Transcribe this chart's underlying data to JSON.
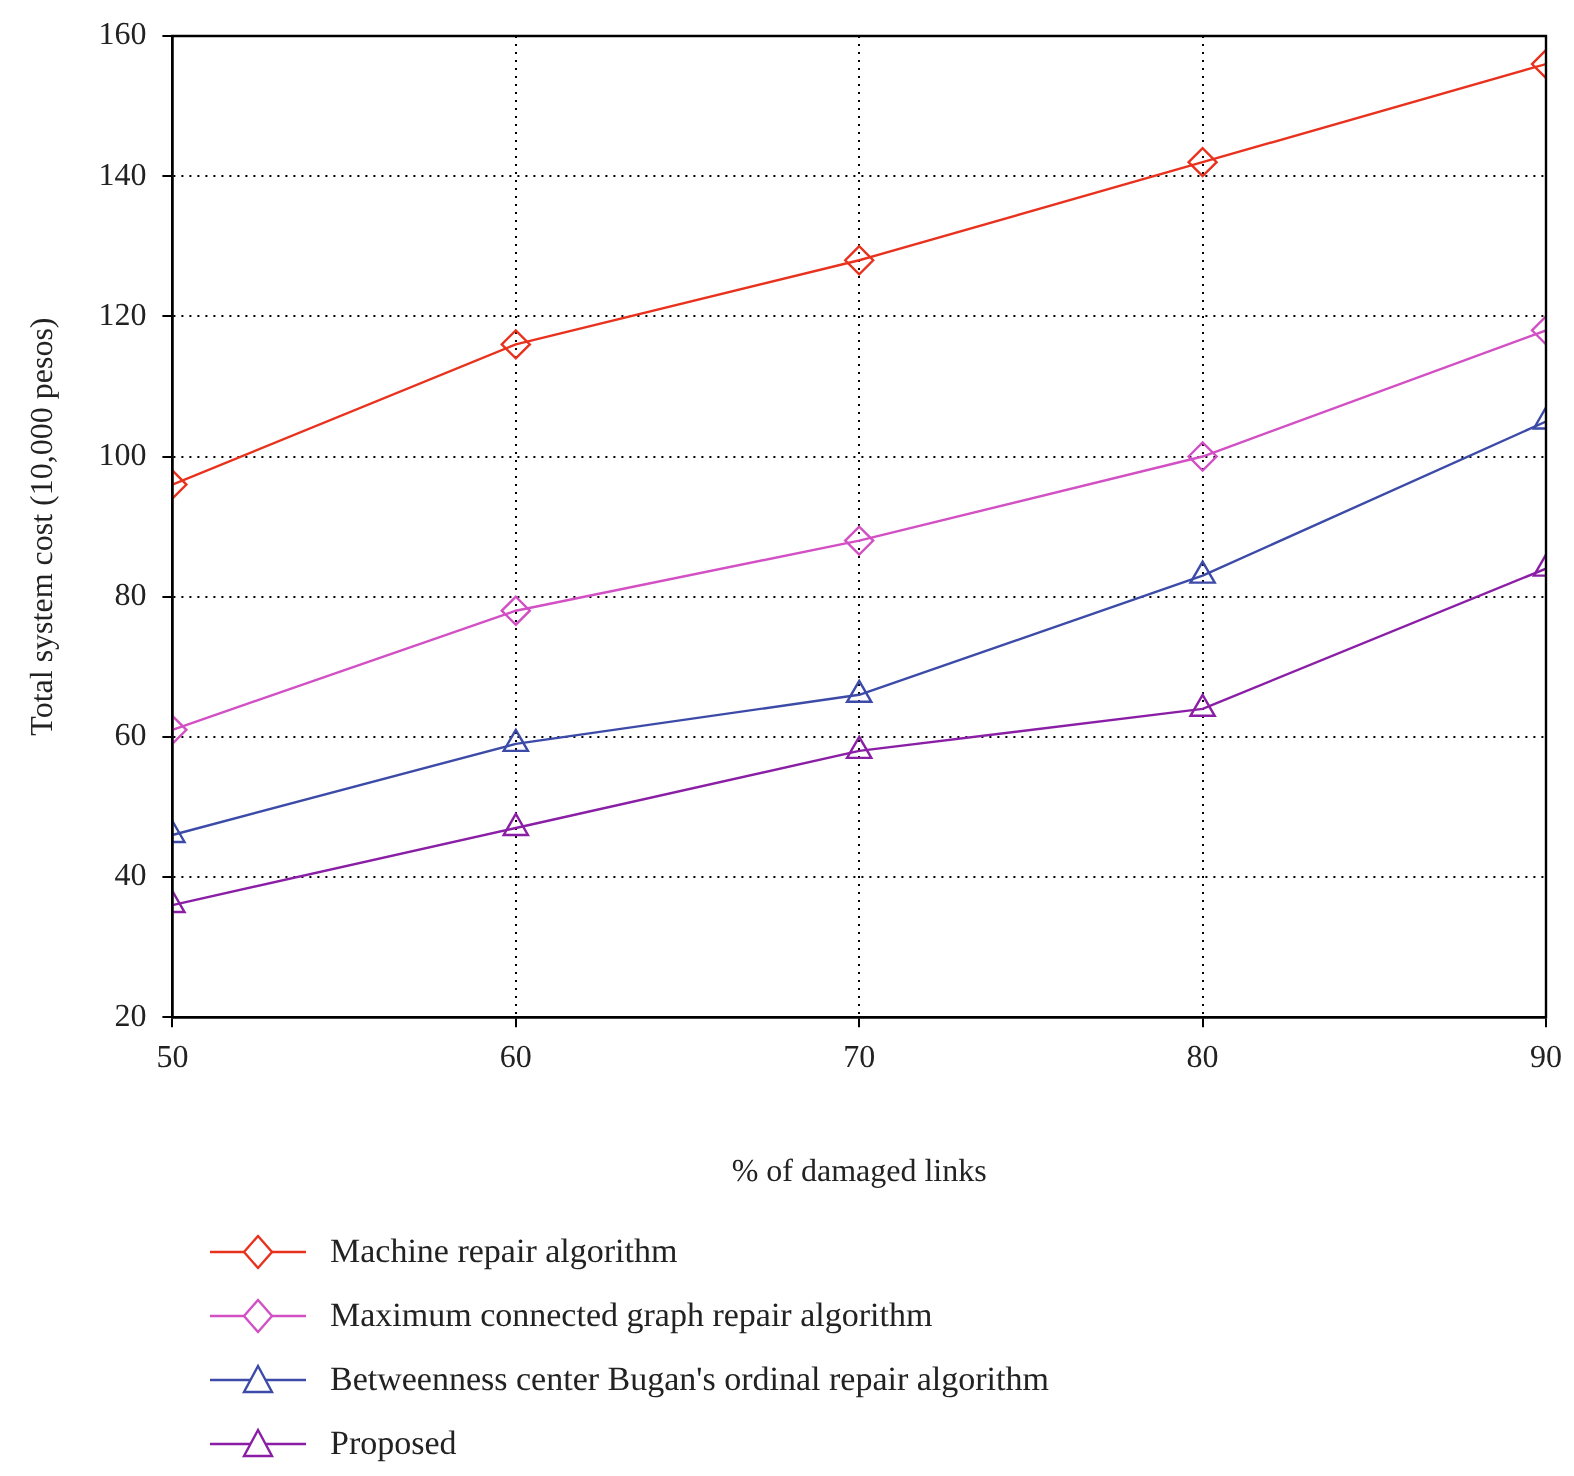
{
  "chart_data": {
    "type": "line",
    "xlabel": "% of damaged links",
    "ylabel": "Total system cost (10,000 pesos)",
    "x": [
      50,
      60,
      70,
      80,
      90
    ],
    "xlim": [
      50,
      90
    ],
    "xticks": [
      50,
      60,
      70,
      80,
      90
    ],
    "ylim": [
      20,
      160
    ],
    "yticks": [
      20,
      40,
      60,
      80,
      100,
      120,
      140,
      160
    ],
    "grid": true,
    "legend": "bottom left",
    "line_style": "solid",
    "series": [
      {
        "name": "Machine repair algorithm",
        "color": "#e8321e",
        "marker": "diamond",
        "values": [
          96,
          116,
          128,
          142,
          156
        ]
      },
      {
        "name": "Maximum connected graph repair algorithm",
        "color": "#d24fc4",
        "marker": "diamond",
        "values": [
          61,
          78,
          88,
          100,
          118
        ]
      },
      {
        "name": "Betweenness center Bugan's ordinal repair algorithm",
        "color": "#3c4aa8",
        "marker": "triangle",
        "values": [
          46,
          59,
          66,
          83,
          105
        ]
      },
      {
        "name": "Proposed",
        "color": "#8a1fa6",
        "marker": "triangle",
        "values": [
          36,
          47,
          58,
          64,
          84
        ]
      }
    ]
  }
}
